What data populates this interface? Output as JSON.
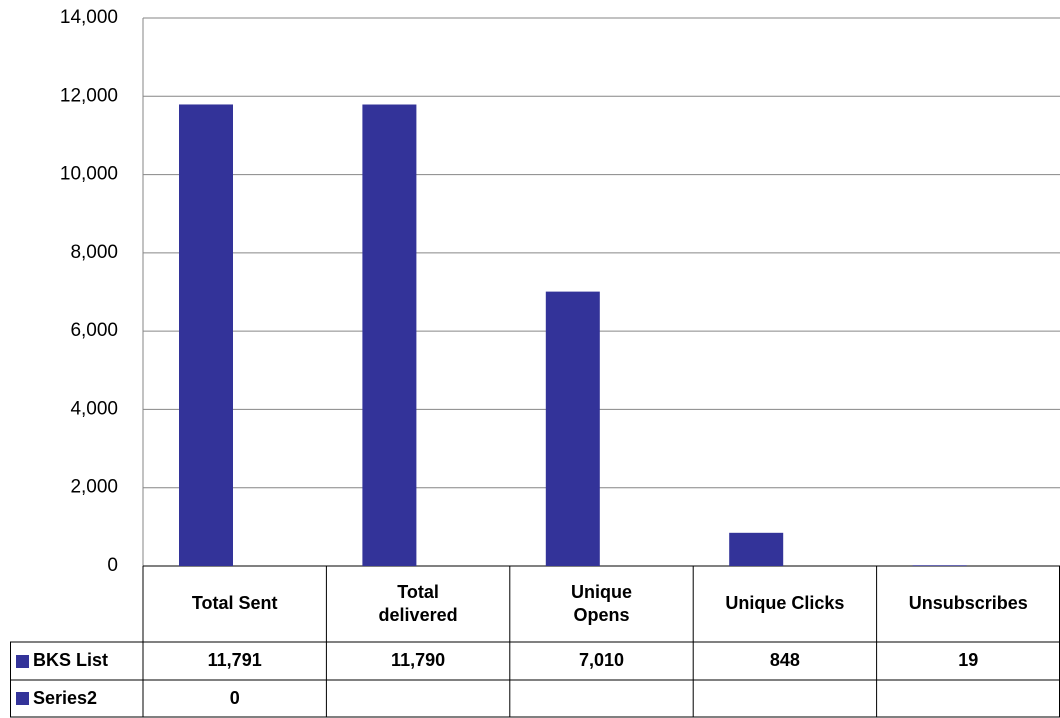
{
  "chart_data": {
    "type": "bar",
    "categories": [
      "Total Sent",
      "Total delivered",
      "Unique Opens",
      "Unique Clicks",
      "Unsubscribes"
    ],
    "series": [
      {
        "name": "BKS List",
        "color": "#333399",
        "values": [
          11791,
          11790,
          7010,
          848,
          19
        ],
        "value_labels": [
          "11,791",
          "11,790",
          "7,010",
          "848",
          "19"
        ]
      },
      {
        "name": "Series2",
        "color": "#333399",
        "values": [
          0,
          null,
          null,
          null,
          null
        ]
      }
    ],
    "ylim": [
      0,
      14000
    ],
    "yticks": [
      0,
      {
        "value": 2000,
        "label": "2,000"
      },
      {
        "value": 4000,
        "label": "4,000"
      },
      {
        "value": 6000,
        "label": "6,000"
      },
      {
        "value": 8000,
        "label": "8,000"
      },
      {
        "value": 10000,
        "label": "10,000"
      },
      {
        "value": 12000,
        "label": "12,000"
      },
      {
        "value": 14000,
        "label": "14,000"
      }
    ],
    "grid": true
  }
}
